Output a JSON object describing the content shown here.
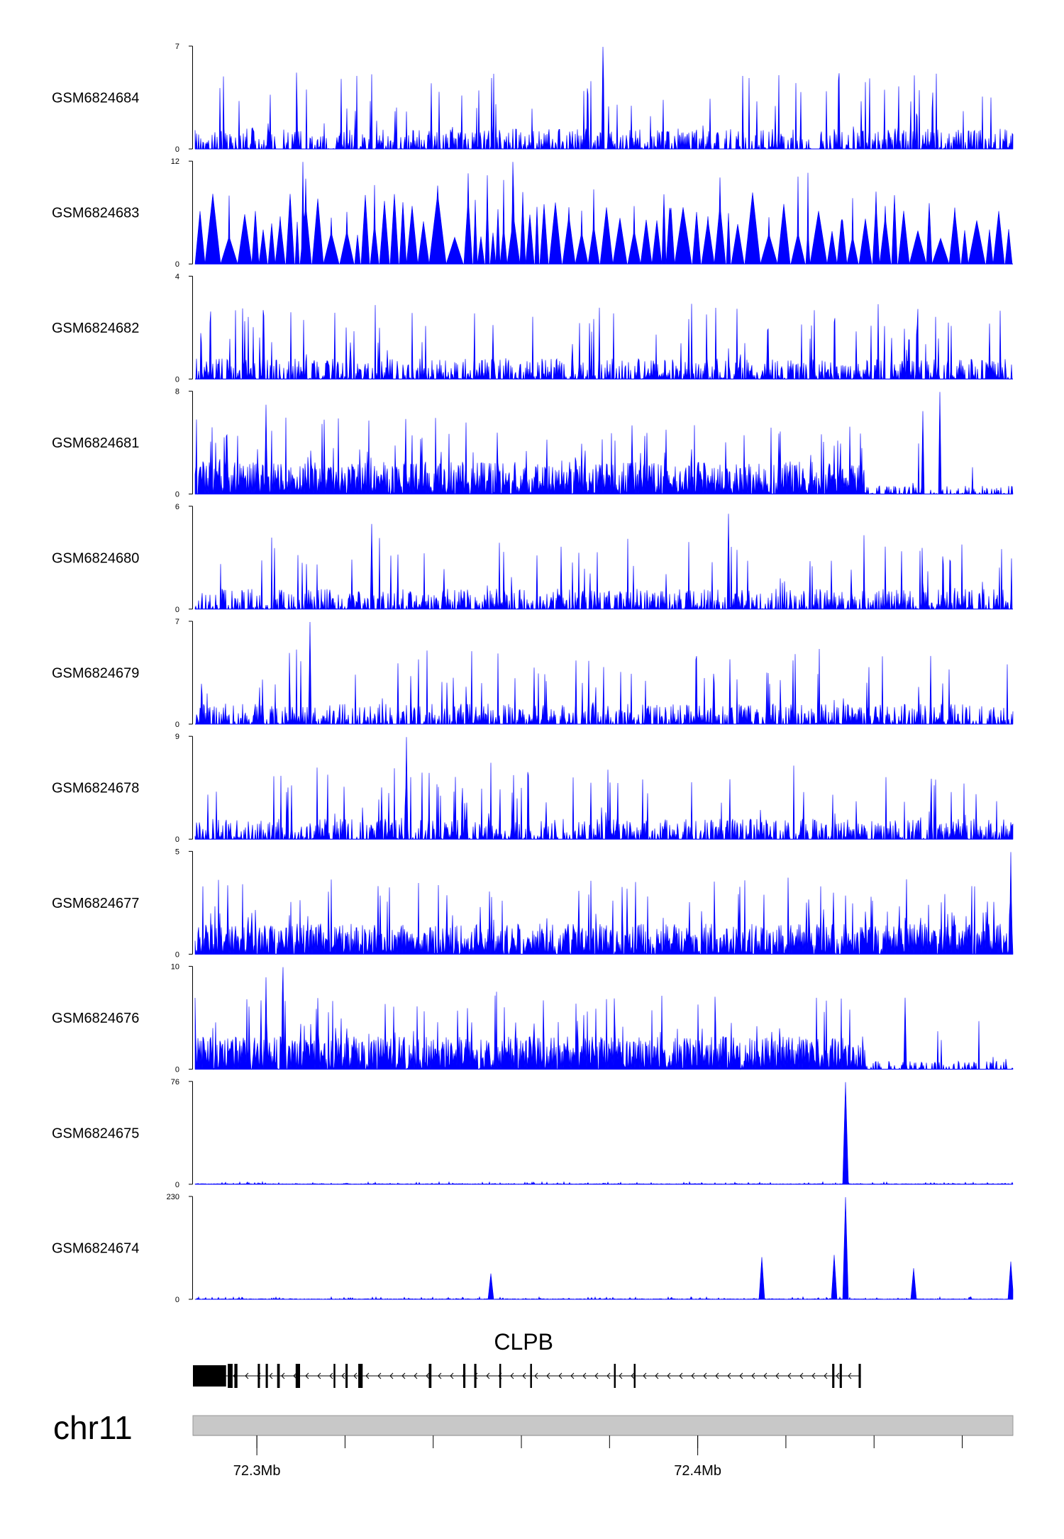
{
  "chart_data": {
    "type": "area",
    "title": "",
    "chromosome": "chr11",
    "region_bp": [
      72285500,
      72471500
    ],
    "series_color": "#0000ff",
    "tracks": [
      {
        "name": "GSM6824684",
        "ymax": "7",
        "max": 7,
        "pattern": "sparse",
        "peaks": [
          {
            "pos": 72378500,
            "height": 7
          }
        ]
      },
      {
        "name": "GSM6824683",
        "ymax": "12",
        "max": 12,
        "pattern": "triangles",
        "peaks": [
          {
            "pos": 72310500,
            "height": 12
          },
          {
            "pos": 72358000,
            "height": 12
          }
        ]
      },
      {
        "name": "GSM6824682",
        "ymax": "4",
        "max": 4,
        "pattern": "sparse",
        "peaks": []
      },
      {
        "name": "GSM6824681",
        "ymax": "8",
        "max": 8,
        "pattern": "dense_left",
        "peaks": [
          {
            "pos": 72302000,
            "height": 7
          },
          {
            "pos": 72455000,
            "height": 8
          },
          {
            "pos": 72451000,
            "height": 6.5
          }
        ]
      },
      {
        "name": "GSM6824680",
        "ymax": "6",
        "max": 6,
        "pattern": "sparse",
        "peaks": [
          {
            "pos": 72326000,
            "height": 5
          },
          {
            "pos": 72407000,
            "height": 5.6
          }
        ]
      },
      {
        "name": "GSM6824679",
        "ymax": "7",
        "max": 7,
        "pattern": "sparse",
        "peaks": [
          {
            "pos": 72312000,
            "height": 7
          }
        ]
      },
      {
        "name": "GSM6824678",
        "ymax": "9",
        "max": 9,
        "pattern": "sparse",
        "peaks": [
          {
            "pos": 72334000,
            "height": 9
          }
        ]
      },
      {
        "name": "GSM6824677",
        "ymax": "5",
        "max": 5,
        "pattern": "dense",
        "peaks": [
          {
            "pos": 72471000,
            "height": 5
          }
        ]
      },
      {
        "name": "GSM6824676",
        "ymax": "10",
        "max": 10,
        "pattern": "dense_left",
        "peaks": [
          {
            "pos": 72306000,
            "height": 10
          },
          {
            "pos": 72302000,
            "height": 9
          },
          {
            "pos": 72447000,
            "height": 7
          }
        ]
      },
      {
        "name": "GSM6824675",
        "ymax": "76",
        "max": 76,
        "pattern": "flat",
        "peaks": [
          {
            "pos": 72433500,
            "height": 76
          }
        ]
      },
      {
        "name": "GSM6824674",
        "ymax": "230",
        "max": 230,
        "pattern": "flat",
        "peaks": [
          {
            "pos": 72353000,
            "height": 58
          },
          {
            "pos": 72414500,
            "height": 95
          },
          {
            "pos": 72431000,
            "height": 100
          },
          {
            "pos": 72433500,
            "height": 230
          },
          {
            "pos": 72449000,
            "height": 70
          },
          {
            "pos": 72471000,
            "height": 85
          }
        ]
      }
    ],
    "gene": {
      "name": "CLPB",
      "strand": "-",
      "start": 72285500,
      "end": 72437000,
      "exons": [
        [
          72285500,
          72293000
        ],
        [
          72293400,
          72294500
        ],
        [
          72294900,
          72295600
        ],
        [
          72300200,
          72300700
        ],
        [
          72302000,
          72302500
        ],
        [
          72304600,
          72305200
        ],
        [
          72308800,
          72309800
        ],
        [
          72317400,
          72317800
        ],
        [
          72320100,
          72320600
        ],
        [
          72323000,
          72324000
        ],
        [
          72339000,
          72339600
        ],
        [
          72346800,
          72347300
        ],
        [
          72349300,
          72349800
        ],
        [
          72355000,
          72355400
        ],
        [
          72362000,
          72362400
        ],
        [
          72381000,
          72381400
        ],
        [
          72385500,
          72385900
        ],
        [
          72430500,
          72431000
        ],
        [
          72432200,
          72432700
        ],
        [
          72436500,
          72437000
        ]
      ]
    },
    "ideogram": {
      "chromosome": "chr11",
      "range": [
        72285500,
        72471500
      ]
    },
    "x_axis": {
      "ticks": [
        72300000,
        72320000,
        72340000,
        72360000,
        72380000,
        72400000,
        72420000,
        72440000,
        72460000
      ],
      "tick_labels": [
        {
          "pos": 72300000,
          "text": "72.3Mb"
        },
        {
          "pos": 72400000,
          "text": "72.4Mb"
        }
      ]
    }
  }
}
